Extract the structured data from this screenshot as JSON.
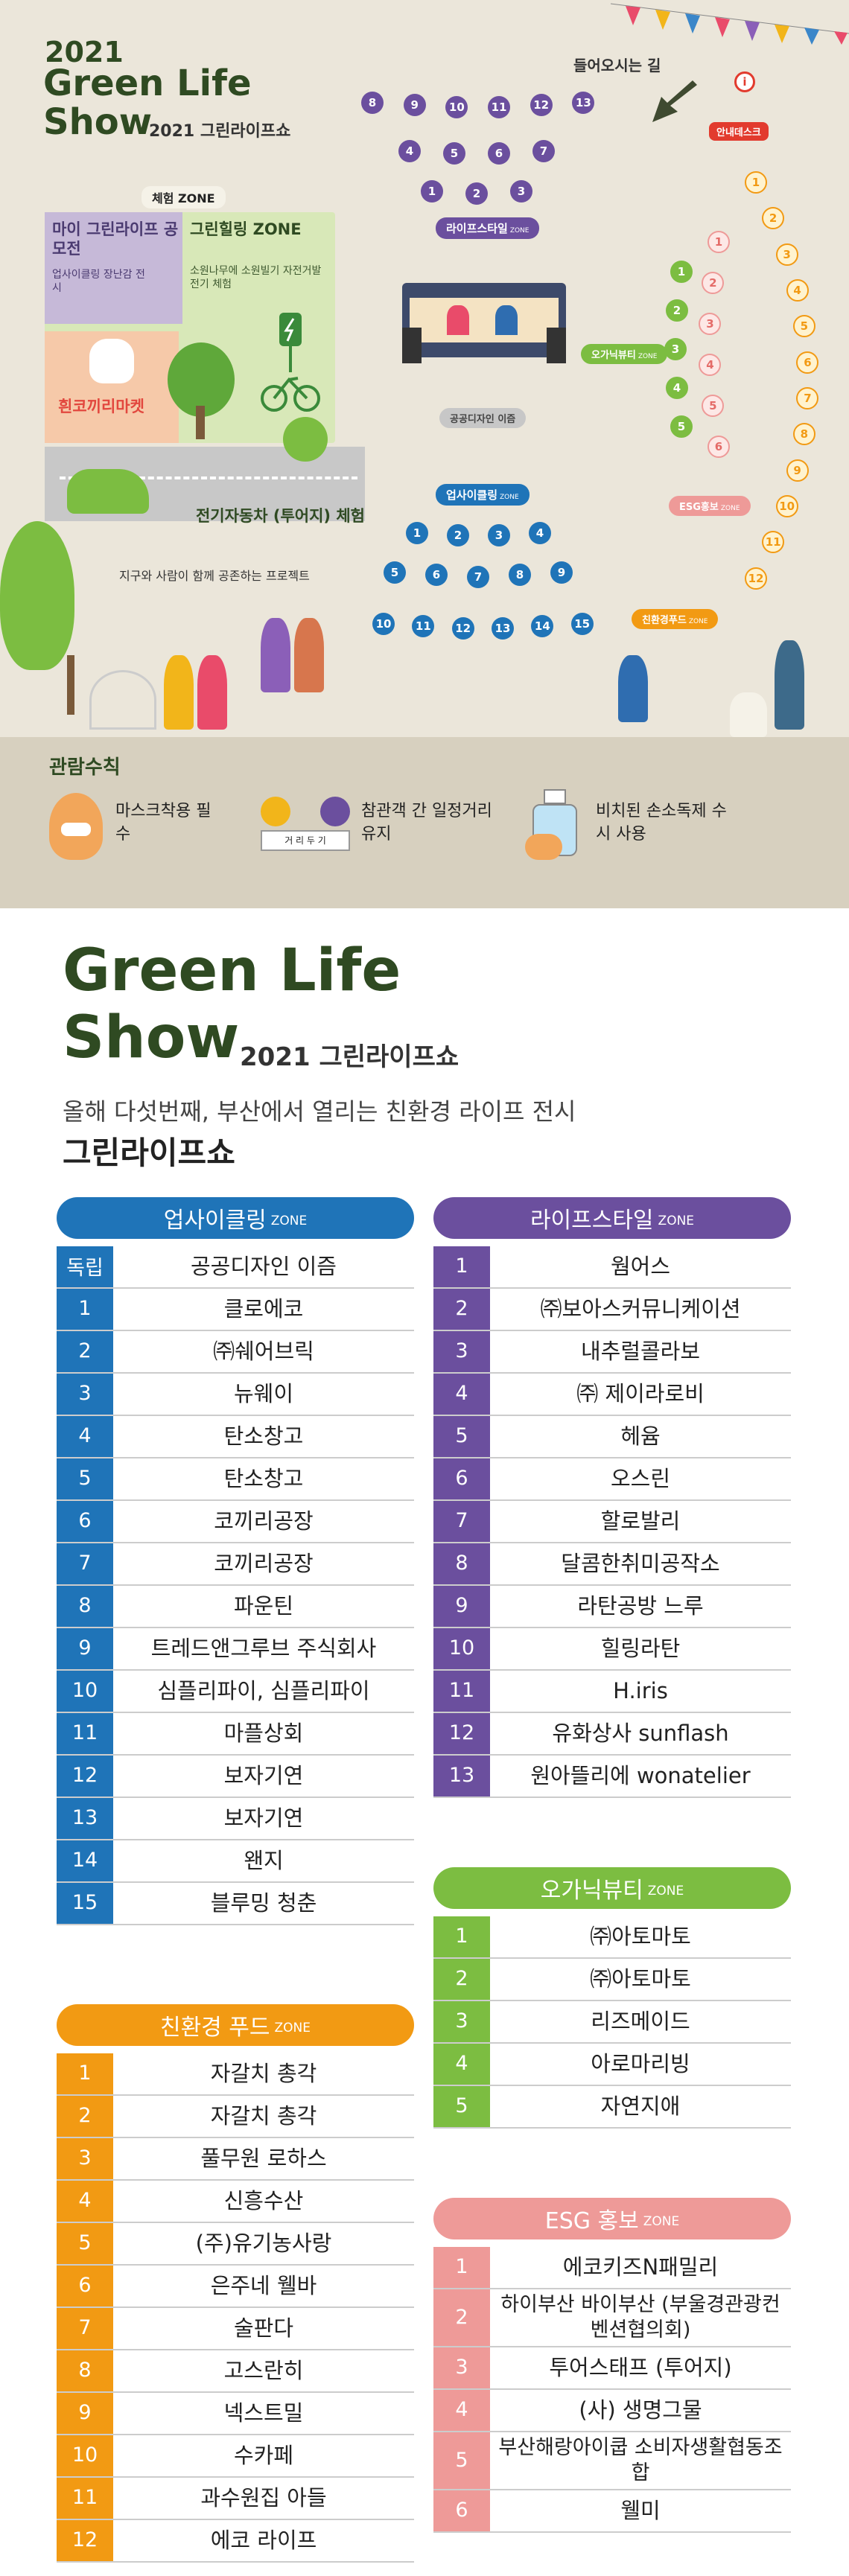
{
  "header": {
    "year": "2021",
    "title1": "Green Life",
    "title2": "Show",
    "subtitle": "2021 그린라이프쇼"
  },
  "map": {
    "entrance": "들어오시는 길",
    "info_desk": "안내데스크",
    "experience_zone": "체험 ZONE",
    "contest_title": "마이 그린라이프 공모전",
    "contest_desc": "업사이클링 장난감 전시",
    "healing_title": "그린힐링 ZONE",
    "healing_desc": "소원나무에 소원빌기 자전거발전기 체험",
    "market": "흰코끼리마켓",
    "ev_title": "전기자동차 (투어지) 체험",
    "ev_desc": "지구와 사람이 함께 공존하는 프로젝트",
    "public_design": "공공디자인 이즘",
    "zones": {
      "lifestyle": "라이프스타일",
      "organic": "오가닉뷰티",
      "upcycling": "업사이클링",
      "esg": "ESG홍보",
      "food": "친환경푸드",
      "zone_suffix": "ZONE"
    },
    "lifestyle_row1": [
      "8",
      "9",
      "10",
      "11",
      "12",
      "13"
    ],
    "lifestyle_row2": [
      "4",
      "5",
      "6",
      "7"
    ],
    "lifestyle_row3": [
      "1",
      "2",
      "3"
    ],
    "upcycle_row1": [
      "1",
      "2",
      "3",
      "4"
    ],
    "upcycle_row2": [
      "5",
      "6",
      "7",
      "8",
      "9"
    ],
    "upcycle_row3": [
      "10",
      "11",
      "12",
      "13",
      "14",
      "15"
    ],
    "organic_seats": [
      "1",
      "2",
      "3",
      "4",
      "5"
    ],
    "esg_seats": [
      "1",
      "2",
      "3",
      "4",
      "5",
      "6"
    ],
    "food_seats": [
      "1",
      "2",
      "3",
      "4",
      "5",
      "6",
      "7",
      "8",
      "9",
      "10",
      "11",
      "12"
    ]
  },
  "rules": {
    "title": "관람수칙",
    "mask": "마스크착용 필수",
    "distance": "참관객 간 일정거리 유지",
    "distance_sign": "거 리 두 기",
    "sanitizer": "비치된 손소독제 수시 사용"
  },
  "info": {
    "title1": "Green Life",
    "title2": "Show",
    "subtitle": "2021 그린라이프쇼",
    "tagline": "올해 다섯번째, 부산에서 열리는 친환경 라이프 전시",
    "tagline_bold": "그린라이프쇼"
  },
  "tables": {
    "upcycling": {
      "title": "업사이클링",
      "suffix": "ZONE",
      "color": "#1f74b8",
      "rows": [
        [
          "독립",
          "공공디자인 이즘"
        ],
        [
          "1",
          "클로에코"
        ],
        [
          "2",
          "㈜쉐어브릭"
        ],
        [
          "3",
          "뉴웨이"
        ],
        [
          "4",
          "탄소창고"
        ],
        [
          "5",
          "탄소창고"
        ],
        [
          "6",
          "코끼리공장"
        ],
        [
          "7",
          "코끼리공장"
        ],
        [
          "8",
          "파운틴"
        ],
        [
          "9",
          "트레드앤그루브 주식회사"
        ],
        [
          "10",
          "심플리파이, 심플리파이"
        ],
        [
          "11",
          "마플상회"
        ],
        [
          "12",
          "보자기연"
        ],
        [
          "13",
          "보자기연"
        ],
        [
          "14",
          "왠지"
        ],
        [
          "15",
          "블루밍 청춘"
        ]
      ]
    },
    "lifestyle": {
      "title": "라이프스타일",
      "suffix": "ZONE",
      "color": "#6b4f9e",
      "rows": [
        [
          "1",
          "웜어스"
        ],
        [
          "2",
          "㈜보아스커뮤니케이션"
        ],
        [
          "3",
          "내추럴콜라보"
        ],
        [
          "4",
          "㈜ 제이라로비"
        ],
        [
          "5",
          "헤윰"
        ],
        [
          "6",
          "오스린"
        ],
        [
          "7",
          "할로발리"
        ],
        [
          "8",
          "달콤한취미공작소"
        ],
        [
          "9",
          "라탄공방 느루"
        ],
        [
          "10",
          "힐링라탄"
        ],
        [
          "11",
          "H.iris"
        ],
        [
          "12",
          "유화상사 sunflash"
        ],
        [
          "13",
          "원아뜰리에 wonatelier"
        ]
      ]
    },
    "organic": {
      "title": "오가닉뷰티",
      "suffix": "ZONE",
      "color": "#7cbd41",
      "rows": [
        [
          "1",
          "㈜아토마토"
        ],
        [
          "2",
          "㈜아토마토"
        ],
        [
          "3",
          "리즈메이드"
        ],
        [
          "4",
          "아로마리빙"
        ],
        [
          "5",
          "자연지애"
        ]
      ]
    },
    "food": {
      "title": "친환경 푸드",
      "suffix": "ZONE",
      "color": "#f29a13",
      "rows": [
        [
          "1",
          "자갈치 총각"
        ],
        [
          "2",
          "자갈치 총각"
        ],
        [
          "3",
          "풀무원 로하스"
        ],
        [
          "4",
          "신흥수산"
        ],
        [
          "5",
          "(주)유기농사랑"
        ],
        [
          "6",
          "은주네 웰바"
        ],
        [
          "7",
          "술판다"
        ],
        [
          "8",
          "고스란히"
        ],
        [
          "9",
          "넥스트밀"
        ],
        [
          "10",
          "수카페"
        ],
        [
          "11",
          "과수원집 아들"
        ],
        [
          "12",
          "에코 라이프"
        ]
      ]
    },
    "esg": {
      "title": "ESG 홍보",
      "suffix": "ZONE",
      "color": "#ee9a98",
      "rows": [
        [
          "1",
          "에코키즈N패밀리"
        ],
        [
          "2",
          "하이부산 바이부산 (부울경관광컨벤션협의회)"
        ],
        [
          "3",
          "투어스태프 (투어지)"
        ],
        [
          "4",
          "(사) 생명그물"
        ],
        [
          "5",
          "부산해랑아이쿱 소비자생활협동조합"
        ],
        [
          "6",
          "웰미"
        ]
      ]
    }
  }
}
